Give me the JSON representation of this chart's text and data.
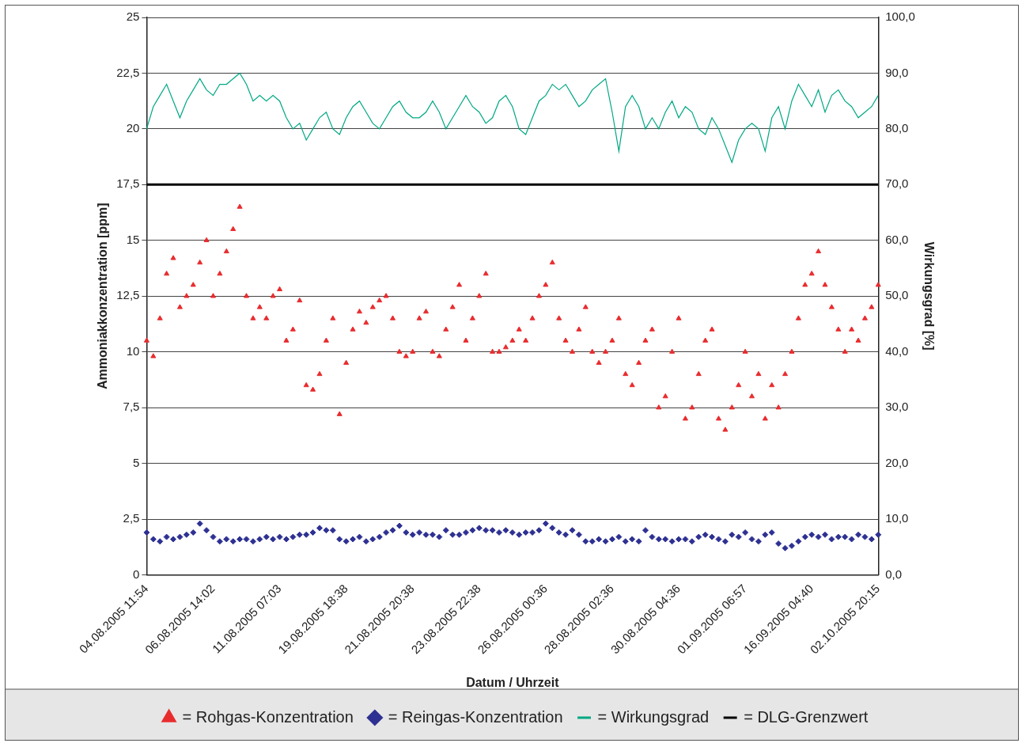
{
  "chart_data": {
    "type": "scatter",
    "xlabel": "Datum / Uhrzeit",
    "ylabel": "Ammoniakkonzentration [ppm]",
    "y2label": "Wirkungsgrad [%]",
    "categories": [
      "04.08.2005 11:54",
      null,
      null,
      null,
      null,
      null,
      null,
      null,
      null,
      null,
      "06.08.2005 14:02",
      null,
      null,
      null,
      null,
      null,
      null,
      null,
      null,
      null,
      "11.08.2005 07:03",
      null,
      null,
      null,
      null,
      null,
      null,
      null,
      null,
      null,
      "19.08.2005 18:38",
      null,
      null,
      null,
      null,
      null,
      null,
      null,
      null,
      null,
      "21.08.2005 20:38",
      null,
      null,
      null,
      null,
      null,
      null,
      null,
      null,
      null,
      "23.08.2005 22:38",
      null,
      null,
      null,
      null,
      null,
      null,
      null,
      null,
      null,
      "26.08.2005 00:36",
      null,
      null,
      null,
      null,
      null,
      null,
      null,
      null,
      null,
      "28.08.2005 02:36",
      null,
      null,
      null,
      null,
      null,
      null,
      null,
      null,
      null,
      "30.08.2005 04:36",
      null,
      null,
      null,
      null,
      null,
      null,
      null,
      null,
      null,
      "01.09.2005 06:57",
      null,
      null,
      null,
      null,
      null,
      null,
      null,
      null,
      null,
      "16.09.2005 04:40",
      null,
      null,
      null,
      null,
      null,
      null,
      null,
      null,
      null,
      "02.10.2005 20:15"
    ],
    "series": [
      {
        "name": "= Rohgas-Konzentration",
        "marker": "triangle",
        "color": "#e82c2e",
        "values": [
          10.5,
          9.8,
          11.5,
          13.5,
          14.2,
          12.0,
          12.5,
          13.0,
          14.0,
          15.0,
          12.5,
          13.5,
          14.5,
          15.5,
          16.5,
          12.5,
          11.5,
          12.0,
          11.5,
          12.5,
          12.8,
          10.5,
          11.0,
          12.3,
          8.5,
          8.3,
          9.0,
          10.5,
          11.5,
          7.2,
          9.5,
          11.0,
          11.8,
          11.3,
          12.0,
          12.3,
          12.5,
          11.5,
          10.0,
          9.8,
          10.0,
          11.5,
          11.8,
          10.0,
          9.8,
          11.0,
          12.0,
          13.0,
          10.5,
          11.5,
          12.5,
          13.5,
          10.0,
          10.0,
          10.2,
          10.5,
          11.0,
          10.5,
          11.5,
          12.5,
          13.0,
          14.0,
          11.5,
          10.5,
          10.0,
          11.0,
          12.0,
          10.0,
          9.5,
          10.0,
          10.5,
          11.5,
          9.0,
          8.5,
          9.5,
          10.5,
          11.0,
          7.5,
          8.0,
          10.0,
          11.5,
          7.0,
          7.5,
          9.0,
          10.5,
          11.0,
          7.0,
          6.5,
          7.5,
          8.5,
          10.0,
          8.0,
          9.0,
          7.0,
          8.5,
          7.5,
          9.0,
          10.0,
          11.5,
          13.0,
          13.5,
          14.5,
          13.0,
          12.0,
          11.0,
          10.0,
          11.0,
          10.5,
          11.5,
          12.0,
          13.0
        ]
      },
      {
        "name": "= Reingas-Konzentration",
        "marker": "diamond",
        "color": "#2e3192",
        "values": [
          1.9,
          1.6,
          1.5,
          1.7,
          1.6,
          1.7,
          1.8,
          1.9,
          2.3,
          2.0,
          1.7,
          1.5,
          1.6,
          1.5,
          1.6,
          1.6,
          1.5,
          1.6,
          1.7,
          1.6,
          1.7,
          1.6,
          1.7,
          1.8,
          1.8,
          1.9,
          2.1,
          2.0,
          2.0,
          1.6,
          1.5,
          1.6,
          1.7,
          1.5,
          1.6,
          1.7,
          1.9,
          2.0,
          2.2,
          1.9,
          1.8,
          1.9,
          1.8,
          1.8,
          1.7,
          2.0,
          1.8,
          1.8,
          1.9,
          2.0,
          2.1,
          2.0,
          2.0,
          1.9,
          2.0,
          1.9,
          1.8,
          1.9,
          1.9,
          2.0,
          2.3,
          2.1,
          1.9,
          1.8,
          2.0,
          1.8,
          1.5,
          1.5,
          1.6,
          1.5,
          1.6,
          1.7,
          1.5,
          1.6,
          1.5,
          2.0,
          1.7,
          1.6,
          1.6,
          1.5,
          1.6,
          1.6,
          1.5,
          1.7,
          1.8,
          1.7,
          1.6,
          1.5,
          1.8,
          1.7,
          1.9,
          1.6,
          1.5,
          1.8,
          1.9,
          1.4,
          1.2,
          1.3,
          1.5,
          1.7,
          1.8,
          1.7,
          1.8,
          1.6,
          1.7,
          1.7,
          1.6,
          1.8,
          1.7,
          1.6,
          1.8
        ]
      },
      {
        "name": "= Wirkungsgrad",
        "type": "line",
        "marker": "none",
        "axis": "y2",
        "color": "#00a884",
        "values": [
          80,
          84,
          86,
          88,
          85,
          82,
          85,
          87,
          89,
          87,
          86,
          88,
          88,
          89,
          90,
          88,
          85,
          86,
          85,
          86,
          85,
          82,
          80,
          81,
          78,
          80,
          82,
          83,
          80,
          79,
          82,
          84,
          85,
          83,
          81,
          80,
          82,
          84,
          85,
          83,
          82,
          82,
          83,
          85,
          83,
          80,
          82,
          84,
          86,
          84,
          83,
          81,
          82,
          85,
          86,
          84,
          80,
          79,
          82,
          85,
          86,
          88,
          87,
          88,
          86,
          84,
          85,
          87,
          88,
          89,
          83,
          76,
          84,
          86,
          84,
          80,
          82,
          80,
          83,
          85,
          82,
          84,
          83,
          80,
          79,
          82,
          80,
          77,
          74,
          78,
          80,
          81,
          80,
          76,
          82,
          84,
          80,
          85,
          88,
          86,
          84,
          87,
          83,
          86,
          87,
          85,
          84,
          82,
          83,
          84,
          86
        ]
      }
    ],
    "ylim": [
      0,
      25
    ],
    "yticks": [
      0,
      {
        "value": 2.5,
        "label": "2,5"
      },
      5,
      {
        "value": 7.5,
        "label": "7,5"
      },
      10,
      {
        "value": 12.5,
        "label": "12,5"
      },
      15,
      {
        "value": 17.5,
        "label": "17,5"
      },
      20,
      {
        "value": 22.5,
        "label": "22,5"
      },
      25
    ],
    "y2lim": [
      0,
      100
    ],
    "y2ticks": [
      {
        "value": 0,
        "label": "0,0"
      },
      {
        "value": 10,
        "label": "10,0"
      },
      {
        "value": 20,
        "label": "20,0"
      },
      {
        "value": 30,
        "label": "30,0"
      },
      {
        "value": 40,
        "label": "40,0"
      },
      {
        "value": 50,
        "label": "50,0"
      },
      {
        "value": 60,
        "label": "60,0"
      },
      {
        "value": 70,
        "label": "70,0"
      },
      {
        "value": 80,
        "label": "80,0"
      },
      {
        "value": 90,
        "label": "90,0"
      },
      {
        "value": 100,
        "label": "100,0"
      }
    ],
    "ref_lines": [
      {
        "axis": "y",
        "value": 17.5,
        "label": "= DLG-Grenzwert",
        "color": "#000000",
        "line_style": "solid"
      }
    ],
    "grid": "y",
    "legend": "bottom"
  }
}
